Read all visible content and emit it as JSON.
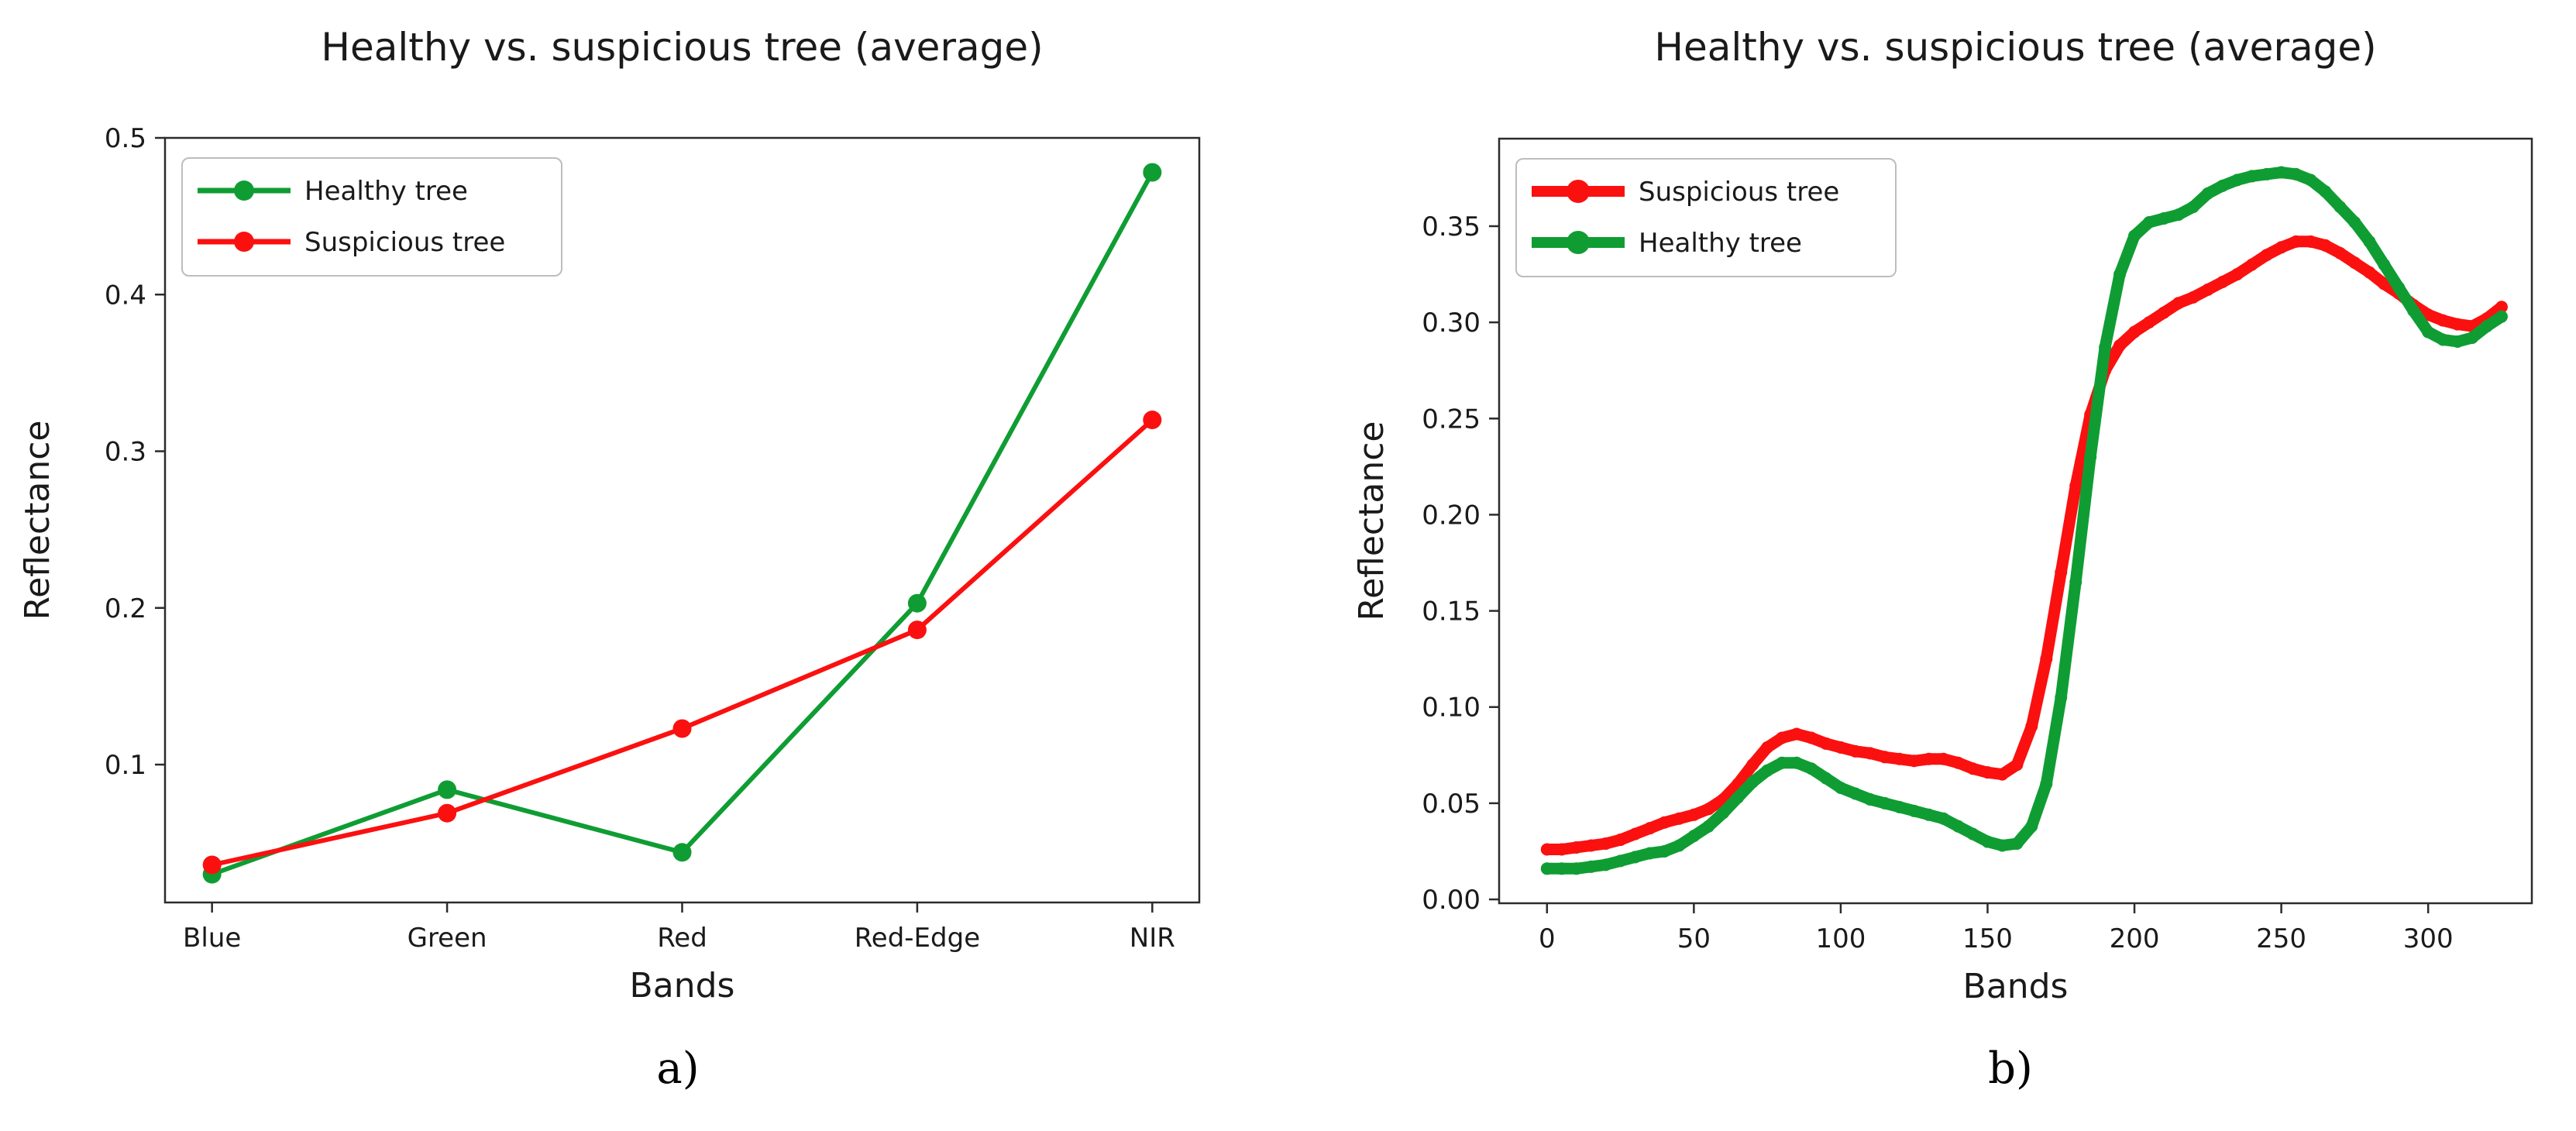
{
  "figure": {
    "panels": [
      {
        "id": "a",
        "caption": "a)"
      },
      {
        "id": "b",
        "caption": "b)"
      }
    ]
  },
  "colors": {
    "healthy_green": "#0f9d33",
    "suspicious_red": "#fb1010",
    "spine": "#2b2b2b",
    "text": "#1a1a1a",
    "legend_border": "#bdbdbd",
    "background": "#ffffff"
  },
  "chart_data": [
    {
      "type": "line",
      "title": "Healthy vs. suspicious tree (average)",
      "xlabel": "Bands",
      "ylabel": "Reflectance",
      "categories": [
        "Blue",
        "Green",
        "Red",
        "Red-Edge",
        "NIR"
      ],
      "yticks": [
        {
          "v": 0.1,
          "label": "0.1"
        },
        {
          "v": 0.2,
          "label": "0.2"
        },
        {
          "v": 0.3,
          "label": "0.3"
        },
        {
          "v": 0.4,
          "label": "0.4"
        },
        {
          "v": 0.5,
          "label": "0.5"
        }
      ],
      "ylim": [
        0.012,
        0.5
      ],
      "xlim": [
        -0.2,
        4.2
      ],
      "grid": false,
      "legend_position": "upper left",
      "series": [
        {
          "name": "Healthy tree",
          "color_key": "healthy_green",
          "values": [
            0.03,
            0.084,
            0.044,
            0.203,
            0.478
          ]
        },
        {
          "name": "Suspicious tree",
          "color_key": "suspicious_red",
          "values": [
            0.036,
            0.069,
            0.123,
            0.186,
            0.32
          ]
        }
      ]
    },
    {
      "type": "line",
      "title": "Healthy vs. suspicious tree (average)",
      "xlabel": "Bands",
      "ylabel": "Reflectance",
      "x": [
        0,
        5,
        10,
        15,
        20,
        25,
        30,
        35,
        40,
        45,
        50,
        55,
        60,
        65,
        70,
        75,
        80,
        85,
        90,
        95,
        100,
        105,
        110,
        115,
        120,
        125,
        130,
        135,
        140,
        145,
        150,
        155,
        160,
        165,
        170,
        175,
        180,
        185,
        190,
        195,
        200,
        205,
        210,
        215,
        220,
        225,
        230,
        235,
        240,
        245,
        250,
        255,
        260,
        265,
        270,
        275,
        280,
        285,
        290,
        295,
        300,
        305,
        310,
        315,
        320,
        325
      ],
      "xticks": [
        {
          "v": 0,
          "label": "0"
        },
        {
          "v": 50,
          "label": "50"
        },
        {
          "v": 100,
          "label": "100"
        },
        {
          "v": 150,
          "label": "150"
        },
        {
          "v": 200,
          "label": "200"
        },
        {
          "v": 250,
          "label": "250"
        },
        {
          "v": 300,
          "label": "300"
        }
      ],
      "yticks": [
        {
          "v": 0.0,
          "label": "0.00"
        },
        {
          "v": 0.05,
          "label": "0.05"
        },
        {
          "v": 0.1,
          "label": "0.10"
        },
        {
          "v": 0.15,
          "label": "0.15"
        },
        {
          "v": 0.2,
          "label": "0.20"
        },
        {
          "v": 0.25,
          "label": "0.25"
        },
        {
          "v": 0.3,
          "label": "0.30"
        },
        {
          "v": 0.35,
          "label": "0.35"
        }
      ],
      "ylim": [
        -0.002,
        0.3955
      ],
      "xlim": [
        -16.3,
        335.3
      ],
      "grid": false,
      "legend_position": "upper left",
      "series": [
        {
          "name": "Suspicious tree",
          "color_key": "suspicious_red",
          "values": [
            0.026,
            0.026,
            0.027,
            0.028,
            0.029,
            0.031,
            0.034,
            0.037,
            0.04,
            0.042,
            0.044,
            0.047,
            0.052,
            0.06,
            0.07,
            0.079,
            0.084,
            0.086,
            0.084,
            0.081,
            0.079,
            0.077,
            0.076,
            0.074,
            0.073,
            0.072,
            0.073,
            0.073,
            0.071,
            0.068,
            0.066,
            0.065,
            0.07,
            0.09,
            0.125,
            0.17,
            0.215,
            0.252,
            0.275,
            0.288,
            0.295,
            0.3,
            0.305,
            0.31,
            0.313,
            0.317,
            0.321,
            0.325,
            0.33,
            0.335,
            0.339,
            0.342,
            0.342,
            0.34,
            0.336,
            0.331,
            0.326,
            0.32,
            0.315,
            0.309,
            0.304,
            0.301,
            0.299,
            0.298,
            0.302,
            0.308
          ]
        },
        {
          "name": "Healthy tree",
          "color_key": "healthy_green",
          "values": [
            0.016,
            0.016,
            0.016,
            0.017,
            0.018,
            0.02,
            0.022,
            0.024,
            0.025,
            0.028,
            0.033,
            0.038,
            0.045,
            0.053,
            0.061,
            0.067,
            0.071,
            0.071,
            0.068,
            0.063,
            0.058,
            0.055,
            0.052,
            0.05,
            0.048,
            0.046,
            0.044,
            0.042,
            0.038,
            0.034,
            0.03,
            0.028,
            0.029,
            0.038,
            0.06,
            0.105,
            0.165,
            0.23,
            0.287,
            0.325,
            0.345,
            0.352,
            0.354,
            0.356,
            0.36,
            0.367,
            0.371,
            0.374,
            0.376,
            0.377,
            0.378,
            0.377,
            0.374,
            0.368,
            0.36,
            0.352,
            0.342,
            0.33,
            0.318,
            0.306,
            0.295,
            0.291,
            0.29,
            0.292,
            0.298,
            0.303
          ]
        }
      ]
    }
  ]
}
